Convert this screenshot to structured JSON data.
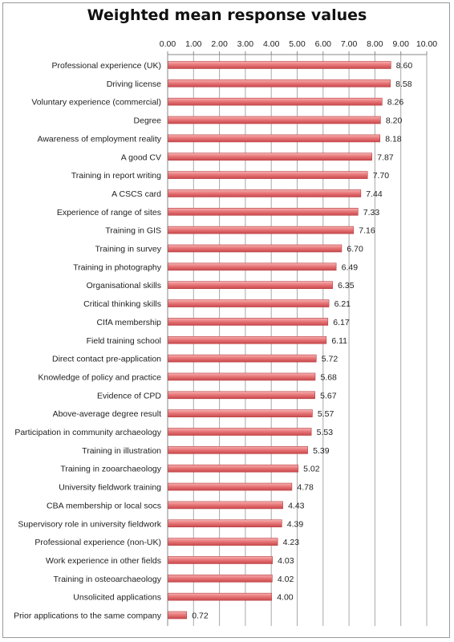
{
  "chart_data": {
    "type": "bar",
    "orientation": "horizontal",
    "title": "Weighted mean response values",
    "xlabel": "",
    "ylabel": "",
    "xlim": [
      0,
      10
    ],
    "x_ticks": [
      "0.00",
      "1.00",
      "2.00",
      "3.00",
      "4.00",
      "5.00",
      "6.00",
      "7.00",
      "8.00",
      "9.00",
      "10.00"
    ],
    "x_axis_position": "top",
    "grid": true,
    "legend": "none",
    "bar_color": "#e8787a",
    "categories": [
      "Professional experience (UK)",
      "Driving license",
      "Voluntary experience (commercial)",
      "Degree",
      "Awareness of employment reality",
      "A good CV",
      "Training in report writing",
      "A CSCS card",
      "Experience of range of sites",
      "Training in GIS",
      "Training in survey",
      "Training in photography",
      "Organisational skills",
      "Critical thinking skills",
      "CIfA membership",
      "Field training school",
      "Direct contact pre-application",
      "Knowledge of policy and practice",
      "Evidence of CPD",
      "Above-average degree result",
      "Participation in community archaeology",
      "Training in illustration",
      "Training in zooarchaeology",
      "University fieldwork training",
      "CBA membership or local socs",
      "Supervisory role in university fieldwork",
      "Professional experience (non-UK)",
      "Work experience in other fields",
      "Training in osteoarchaeology",
      "Unsolicited applications",
      "Prior applications to the same company"
    ],
    "values": [
      8.6,
      8.58,
      8.26,
      8.2,
      8.18,
      7.87,
      7.7,
      7.44,
      7.33,
      7.16,
      6.7,
      6.49,
      6.35,
      6.21,
      6.17,
      6.11,
      5.72,
      5.68,
      5.67,
      5.57,
      5.53,
      5.39,
      5.02,
      4.78,
      4.43,
      4.39,
      4.23,
      4.03,
      4.02,
      4.0,
      0.72
    ],
    "value_labels": [
      "8.60",
      "8.58",
      "8.26",
      "8.20",
      "8.18",
      "7.87",
      "7.70",
      "7.44",
      "7.33",
      "7.16",
      "6.70",
      "6.49",
      "6.35",
      "6.21",
      "6.17",
      "6.11",
      "5.72",
      "5.68",
      "5.67",
      "5.57",
      "5.53",
      "5.39",
      "5.02",
      "4.78",
      "4.43",
      "4.39",
      "4.23",
      "4.03",
      "4.02",
      "4.00",
      "0.72"
    ]
  }
}
